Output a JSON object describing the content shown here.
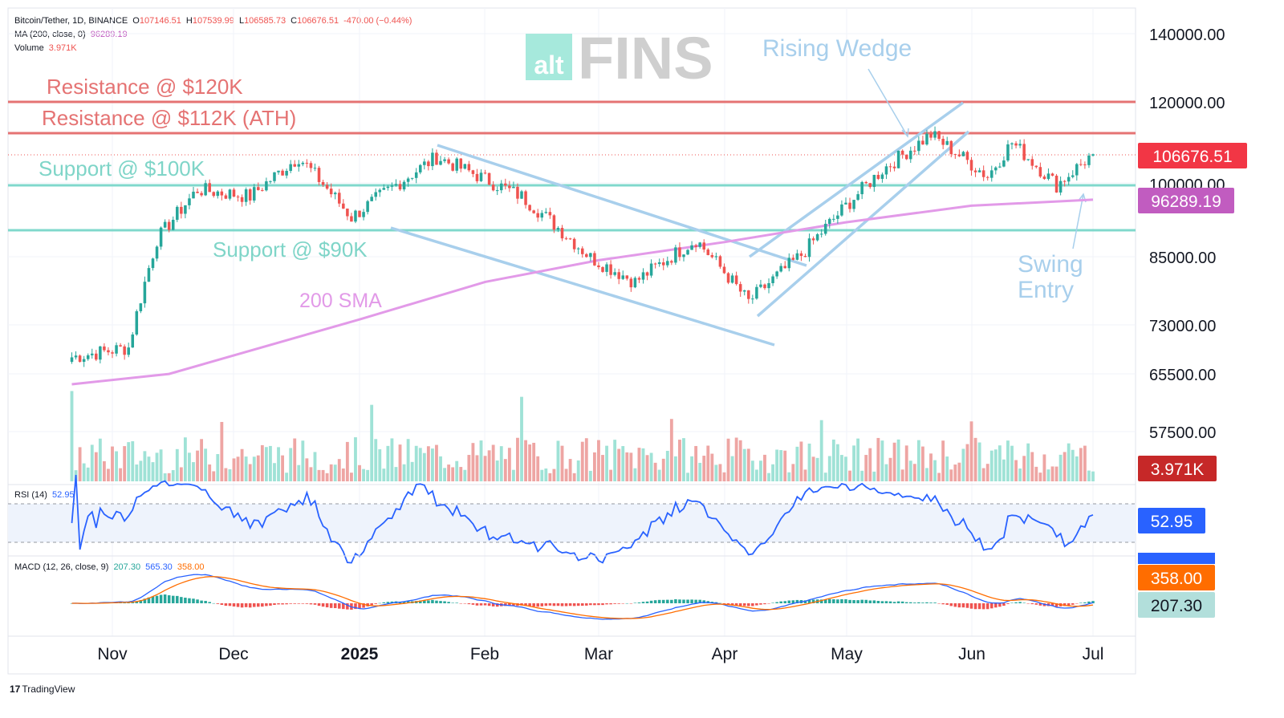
{
  "header": {
    "title": "Bitcoin/Tether, 1D, BINANCE",
    "o_label": "O",
    "o": "107146.51",
    "h_label": "H",
    "h": "107539.99",
    "l_label": "L",
    "l": "106585.73",
    "c_label": "C",
    "c": "106676.51",
    "change": "-470.00 (−0.44%)",
    "ma_label": "MA (200, close, 0)",
    "ma_value": "96289.19",
    "volume_label": "Volume",
    "volume_value": "3.971K"
  },
  "rsi_header": {
    "label": "RSI (14)",
    "value": "52.95"
  },
  "macd_header": {
    "label": "MACD (12, 26, close, 9)",
    "hist": "207.30",
    "macd": "565.30",
    "signal": "358.00"
  },
  "watermark": {
    "small": "alt",
    "big": "FINS"
  },
  "annotations": {
    "res120": "Resistance @ $120K",
    "res112": "Resistance @ $112K (ATH)",
    "sup100": "Support @ $100K",
    "sup90": "Support @ $90K",
    "sma": "200 SMA",
    "wedge": "Rising Wedge",
    "swing1": "Swing",
    "swing2": "Entry"
  },
  "price_axis": [
    "140000.00",
    "120000.00",
    "100000.00",
    "85000.00",
    "73000.00",
    "65500.00",
    "57500.00"
  ],
  "time_axis": [
    "Nov",
    "Dec",
    "2025",
    "Feb",
    "Mar",
    "Apr",
    "May",
    "Jun",
    "Jul"
  ],
  "badges": {
    "price": "106676.51",
    "ma": "96289.19",
    "volume": "3.971K",
    "rsi": "52.95",
    "macd_signal": "358.00",
    "macd_hist": "207.30"
  },
  "branding": "TradingView",
  "colors": {
    "up": "#26a69a",
    "down": "#ef5350",
    "ma": "#e29ae8",
    "resistance": "#e57373",
    "support": "#80d8cc",
    "channel": "#a8cfec",
    "rsi": "#2962ff",
    "macd": "#2962ff",
    "signal": "#ff6d00"
  },
  "chart_data": {
    "type": "candlestick",
    "symbol": "Bitcoin/Tether, 1D, BINANCE",
    "levels": {
      "resistance": [
        120000,
        112000
      ],
      "support": [
        100000,
        90000
      ]
    },
    "ohlc_last": {
      "open": 107146.51,
      "high": 107539.99,
      "low": 106585.73,
      "close": 106676.51
    },
    "price_keypoints": [
      {
        "date": "2024-10-22",
        "close": 67500
      },
      {
        "date": "2024-11-05",
        "close": 69000
      },
      {
        "date": "2024-11-12",
        "close": 88000
      },
      {
        "date": "2024-11-22",
        "close": 98500
      },
      {
        "date": "2024-12-05",
        "close": 97000
      },
      {
        "date": "2024-12-17",
        "close": 106000
      },
      {
        "date": "2024-12-30",
        "close": 92500
      },
      {
        "date": "2025-01-20",
        "close": 106000
      },
      {
        "date": "2025-02-10",
        "close": 97000
      },
      {
        "date": "2025-02-27",
        "close": 84500
      },
      {
        "date": "2025-03-10",
        "close": 80000
      },
      {
        "date": "2025-03-25",
        "close": 88000
      },
      {
        "date": "2025-04-07",
        "close": 76500
      },
      {
        "date": "2025-04-20",
        "close": 85000
      },
      {
        "date": "2025-05-10",
        "close": 103000
      },
      {
        "date": "2025-05-22",
        "close": 111500
      },
      {
        "date": "2025-06-05",
        "close": 101500
      },
      {
        "date": "2025-06-11",
        "close": 109500
      },
      {
        "date": "2025-06-22",
        "close": 99500
      },
      {
        "date": "2025-07-01",
        "close": 106676.51
      }
    ],
    "ma200_keypoints": [
      {
        "date": "2024-10-22",
        "value": 63500
      },
      {
        "date": "2024-11-15",
        "value": 65000
      },
      {
        "date": "2025-01-01",
        "value": 73500
      },
      {
        "date": "2025-02-01",
        "value": 80000
      },
      {
        "date": "2025-03-01",
        "value": 84000
      },
      {
        "date": "2025-04-01",
        "value": 87500
      },
      {
        "date": "2025-05-01",
        "value": 91500
      },
      {
        "date": "2025-06-01",
        "value": 95000
      },
      {
        "date": "2025-07-01",
        "value": 96289.19
      }
    ],
    "rsi": {
      "period": 14,
      "last": 52.95,
      "bands": [
        70,
        30
      ]
    },
    "macd": {
      "fast": 12,
      "slow": 26,
      "signal": 9,
      "macd": 565.3,
      "signal_value": 358.0,
      "hist": 207.3
    }
  }
}
